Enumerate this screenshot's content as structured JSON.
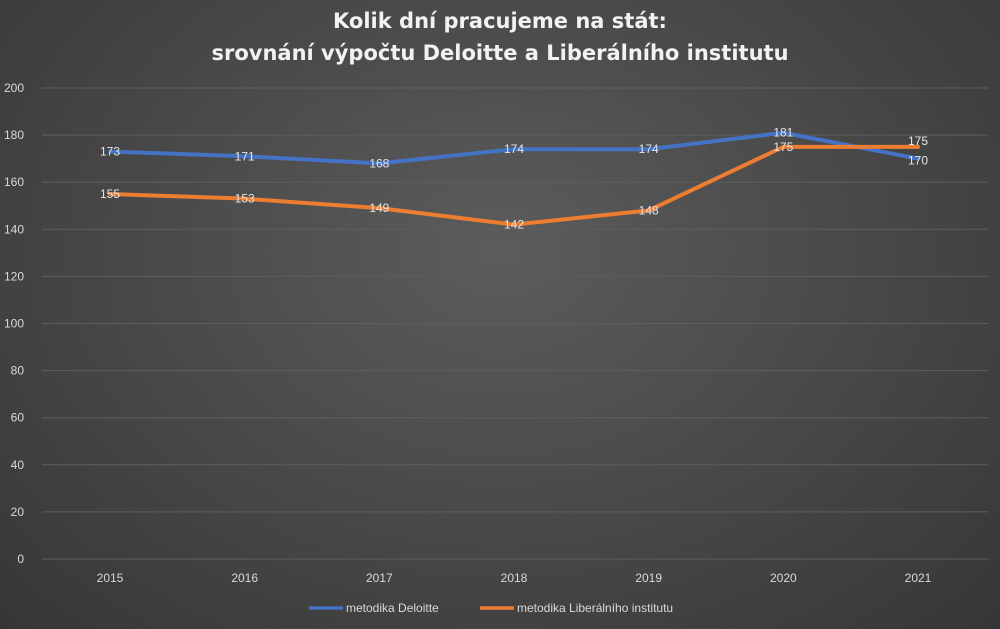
{
  "chart_data": {
    "type": "line",
    "title": "Kolik dní pracujeme na stát:",
    "subtitle": "srovnání výpočtu Deloitte a Liberálního institutu",
    "xlabel": "",
    "ylabel": "",
    "categories": [
      "2015",
      "2016",
      "2017",
      "2018",
      "2019",
      "2020",
      "2021"
    ],
    "ylim": [
      0,
      200
    ],
    "yticks": [
      0,
      20,
      40,
      60,
      80,
      100,
      120,
      140,
      160,
      180,
      200
    ],
    "grid": true,
    "legend_position": "bottom",
    "series": [
      {
        "name": "metodika Deloitte",
        "values": [
          173,
          171,
          168,
          174,
          174,
          181,
          170
        ],
        "color": "#4472c4"
      },
      {
        "name": "metodika Liberálního institutu",
        "values": [
          155,
          153,
          149,
          142,
          148,
          175,
          175
        ],
        "color": "#ed7d31"
      }
    ],
    "gridline_color": "#5e5e5e"
  }
}
